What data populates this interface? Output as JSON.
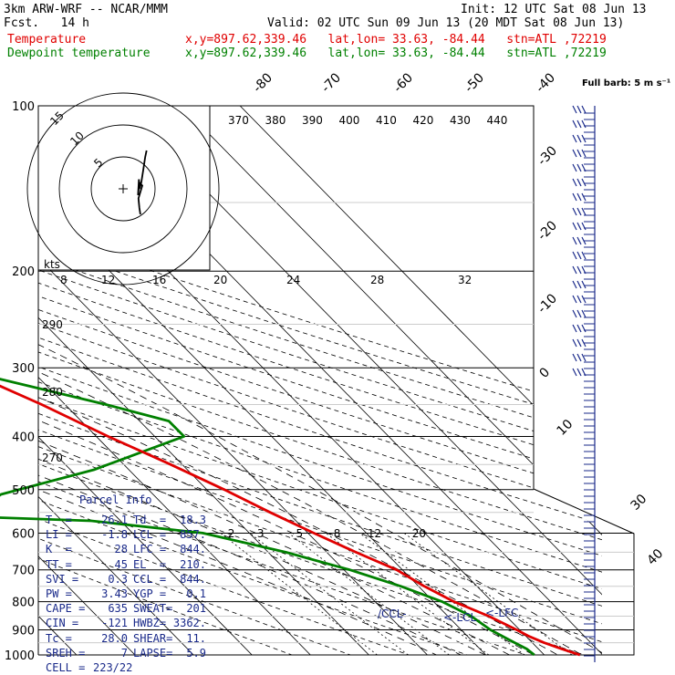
{
  "header": {
    "model": "3km ARW-WRF -- NCAR/MMM",
    "init": "Init: 12 UTC Sat 08 Jun 13",
    "fcst": "Fcst.   14 h",
    "valid": "Valid: 02 UTC Sun 09 Jun 13 (20 MDT Sat 08 Jun 13)",
    "temp_label": "Temperature",
    "temp_info": "x,y=897.62,339.46   lat,lon= 33.63, -84.44   stn=ATL ,72219",
    "dew_label": "Dewpoint temperature",
    "dew_info": "x,y=897.62,339.46   lat,lon= 33.63, -84.44   stn=ATL ,72219"
  },
  "colors": {
    "temperature": "#e00000",
    "dewpoint": "#008000",
    "hodograph": "#000000",
    "parcel_text": "#1a2a8a",
    "barbs": "#1a2a8a"
  },
  "chart_data": {
    "type": "skew-t",
    "pressure_levels": [
      "100",
      "200",
      "300",
      "400",
      "500",
      "600",
      "700",
      "800",
      "900",
      "1000"
    ],
    "temp_ticks": [
      "-80",
      "-70",
      "-60",
      "-50",
      "-40",
      "-30",
      "-20",
      "-10",
      "0",
      "10",
      "20",
      "30",
      "40"
    ],
    "theta_labels": [
      "370",
      "380",
      "390",
      "400",
      "410",
      "420",
      "430",
      "440"
    ],
    "mixing_ratio_labels": [
      "2",
      "3",
      "5",
      "8",
      "12",
      "20"
    ],
    "hodograph": {
      "kts_label": "kts",
      "speed_axis": [
        "8",
        "12",
        "16",
        "20",
        "24",
        "28",
        "32"
      ],
      "ring_labels": [
        "5",
        "10",
        "15"
      ],
      "direction_labels": [
        "290",
        "280",
        "270"
      ]
    },
    "wind_barb_label": "Full barb: 5 m s⁻¹",
    "lcl_label": "<-LCL",
    "lfc_label": "<-LFC",
    "ccl_label": "/CCL-",
    "temperature": {
      "name": "Temperature",
      "points": [
        [
          1000,
          26.1
        ],
        [
          975,
          24
        ],
        [
          950,
          22
        ],
        [
          925,
          20.5
        ],
        [
          900,
          19.5
        ],
        [
          850,
          17
        ],
        [
          800,
          13.5
        ],
        [
          750,
          11
        ],
        [
          700,
          9
        ],
        [
          650,
          5
        ],
        [
          600,
          1
        ],
        [
          550,
          -3
        ],
        [
          500,
          -7
        ],
        [
          450,
          -12
        ],
        [
          400,
          -18
        ],
        [
          350,
          -24
        ],
        [
          300,
          -32
        ],
        [
          250,
          -42
        ],
        [
          200,
          -54
        ],
        [
          175,
          -58
        ],
        [
          150,
          -59
        ],
        [
          125,
          -58
        ],
        [
          110,
          -62
        ],
        [
          100,
          -65
        ]
      ]
    },
    "dewpoint": {
      "name": "Dewpoint temperature",
      "points": [
        [
          1000,
          18.3
        ],
        [
          975,
          18
        ],
        [
          950,
          17
        ],
        [
          925,
          16
        ],
        [
          900,
          15
        ],
        [
          850,
          14
        ],
        [
          800,
          11.5
        ],
        [
          750,
          7
        ],
        [
          700,
          1
        ],
        [
          650,
          -7
        ],
        [
          600,
          -18
        ],
        [
          570,
          -35
        ],
        [
          560,
          -55
        ],
        [
          510,
          -46
        ],
        [
          460,
          -26
        ],
        [
          400,
          -5
        ],
        [
          375,
          -5
        ],
        [
          350,
          -13
        ],
        [
          300,
          -33
        ],
        [
          250,
          -50
        ],
        [
          200,
          -70
        ],
        [
          175,
          -75
        ],
        [
          150,
          -79
        ],
        [
          130,
          -88
        ],
        [
          115,
          -88
        ],
        [
          100,
          -82
        ]
      ]
    },
    "hodograph_trace": [
      [
        18,
        -4
      ],
      [
        17,
        -3
      ],
      [
        16,
        -1.5
      ],
      [
        20,
        0.5
      ],
      [
        17,
        1
      ],
      [
        15.5,
        -1
      ],
      [
        16.5,
        1.5
      ],
      [
        17,
        0
      ],
      [
        19,
        1
      ],
      [
        21,
        3
      ],
      [
        23,
        5
      ],
      [
        24.5,
        6
      ]
    ]
  },
  "parcel_info": {
    "title": "Parcel Info",
    "rows": [
      [
        "T  =",
        "26.1",
        "Td  =",
        "18.3"
      ],
      [
        "LI =",
        "-1.8",
        "LCL =",
        "857."
      ],
      [
        "K  =",
        "28",
        "LFC =",
        "844."
      ],
      [
        "TT =",
        "45",
        "EL  =",
        "210."
      ],
      [
        "SVI =",
        "0.3",
        "CCL =",
        "844."
      ],
      [
        "PW =",
        "3.43",
        "YGP =",
        "0.1"
      ],
      [
        "CAPE =",
        "635",
        "SWEAT=",
        "201"
      ],
      [
        "CIN =",
        "-121",
        "HWBZ=",
        "3362."
      ],
      [
        "Tc =",
        "28.0",
        "SHEAR=",
        "11."
      ],
      [
        "SREH =",
        "7",
        "LAPSE=",
        "5.9"
      ],
      [
        "CELL =",
        "223/22",
        "",
        ""
      ]
    ]
  }
}
